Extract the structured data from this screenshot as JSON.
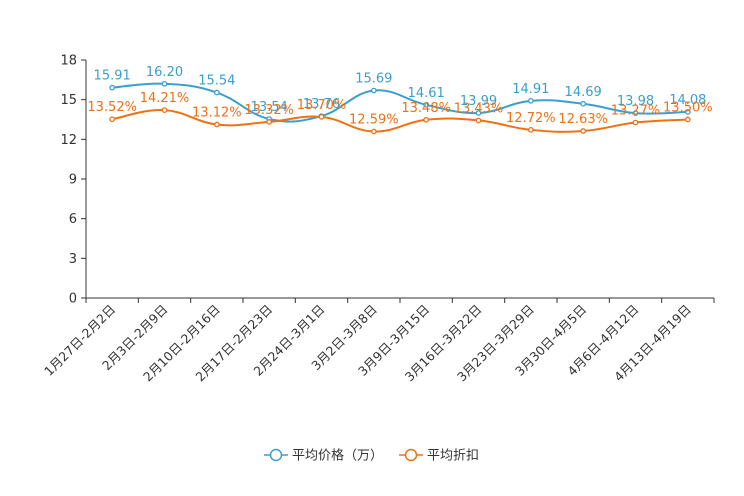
{
  "chart_data": {
    "type": "line",
    "categories": [
      "1月27日-2月2日",
      "2月3日-2月9日",
      "2月10日-2月16日",
      "2月17日-2月23日",
      "2月24日-3月1日",
      "3月2日-3月8日",
      "3月9日-3月15日",
      "3月16日-3月22日",
      "3月23日-3月29日",
      "3月30日-4月5日",
      "4月6日-4月12日",
      "4月13日-4月19日"
    ],
    "series": [
      {
        "name": "平均价格（万）",
        "color": "#3a9fcc",
        "values": [
          15.91,
          16.2,
          15.54,
          13.54,
          13.76,
          15.69,
          14.61,
          13.99,
          14.91,
          14.69,
          13.98,
          14.08
        ]
      },
      {
        "name": "平均折扣",
        "color": "#f07014",
        "values": [
          13.52,
          14.21,
          13.12,
          13.32,
          13.7,
          12.59,
          13.48,
          13.43,
          12.72,
          12.63,
          13.27,
          13.5
        ]
      }
    ],
    "labels": [
      [
        "15.91",
        "16.20",
        "15.54",
        "13.54",
        "13.76",
        "15.69",
        "14.61",
        "13.99",
        "14.91",
        "14.69",
        "13.98",
        "14.08"
      ],
      [
        "13.52%",
        "14.21%",
        "13.12%",
        "13.32%",
        "13.70%",
        "12.59%",
        "13.48%",
        "13.43%",
        "12.72%",
        "12.63%",
        "13.27%",
        "13.50%"
      ]
    ],
    "yticks": [
      "0",
      "3",
      "6",
      "9",
      "12",
      "15",
      "18"
    ],
    "ylim": [
      0,
      18
    ],
    "title": "",
    "xlabel": "",
    "ylabel": "",
    "legend_position": "bottom-center"
  }
}
